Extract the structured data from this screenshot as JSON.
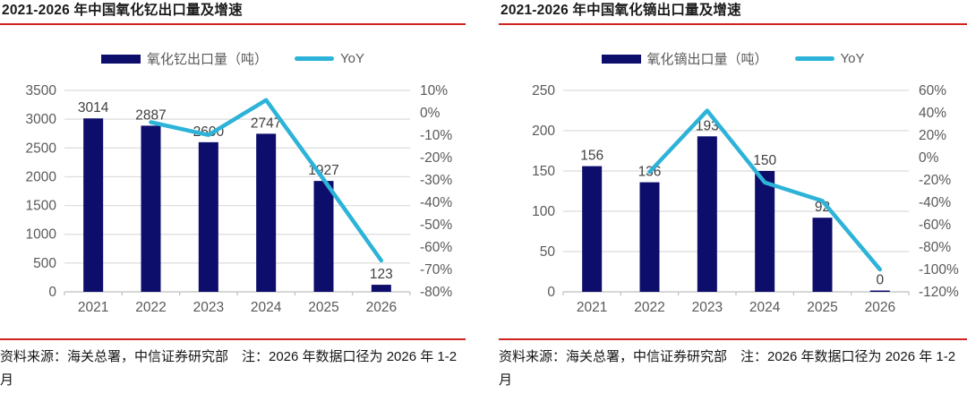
{
  "page": {
    "background": "#ffffff"
  },
  "colors": {
    "bar": "#0d0d6b",
    "line": "#2db3d8",
    "accent_red": "#cf2420",
    "grid_line": "#dcdcdc",
    "axis_line": "#bfbfbf",
    "tick_text": "#595959",
    "data_label": "#3f3f3f",
    "title_text": "#1a1a1a",
    "source_text": "#151515"
  },
  "panels": [
    {
      "title": "2021-2026 年中国氧化钇出口量及增速",
      "legend_bar": "氧化钇出口量（吨）",
      "legend_line": "YoY",
      "source": "资料来源：海关总署，中信证券研究部　注：2026 年数据口径为 2026 年 1-2 月"
    },
    {
      "title": "2021-2026 年中国氧化镝出口量及增速",
      "legend_bar": "氧化镝出口量（吨）",
      "legend_line": "YoY",
      "source": "资料来源：海关总署，中信证券研究部　注：2026 年数据口径为 2026 年 1-2 月"
    }
  ],
  "chart_data": [
    {
      "type": "bar",
      "title": "2021-2026 年中国氧化钇出口量及增速",
      "categories": [
        "2021",
        "2022",
        "2023",
        "2024",
        "2025",
        "2026"
      ],
      "series": [
        {
          "name": "氧化钇出口量（吨）",
          "type": "bar",
          "axis": "left",
          "values": [
            3014,
            2887,
            2600,
            2747,
            1927,
            123
          ]
        },
        {
          "name": "YoY",
          "type": "line",
          "axis": "right",
          "values": [
            null,
            -4.2,
            -9.9,
            5.7,
            -29.8,
            -66
          ]
        }
      ],
      "left_axis": {
        "min": 0,
        "max": 3500,
        "step": 500
      },
      "right_axis": {
        "min": -80,
        "max": 10,
        "step": 10,
        "unit": "%"
      },
      "grid": true,
      "legend_position": "top",
      "data_labels": true
    },
    {
      "type": "bar",
      "title": "2021-2026 年中国氧化镝出口量及增速",
      "categories": [
        "2021",
        "2022",
        "2023",
        "2024",
        "2025",
        "2026"
      ],
      "series": [
        {
          "name": "氧化镝出口量（吨）",
          "type": "bar",
          "axis": "left",
          "values": [
            156,
            136,
            193,
            150,
            92,
            0
          ]
        },
        {
          "name": "YoY",
          "type": "line",
          "axis": "right",
          "values": [
            null,
            -12.8,
            41.9,
            -22.3,
            -38.7,
            -100
          ]
        }
      ],
      "left_axis": {
        "min": 0,
        "max": 250,
        "step": 50
      },
      "right_axis": {
        "min": -120,
        "max": 60,
        "step": 20,
        "unit": "%"
      },
      "grid": true,
      "legend_position": "top",
      "data_labels": true
    }
  ]
}
